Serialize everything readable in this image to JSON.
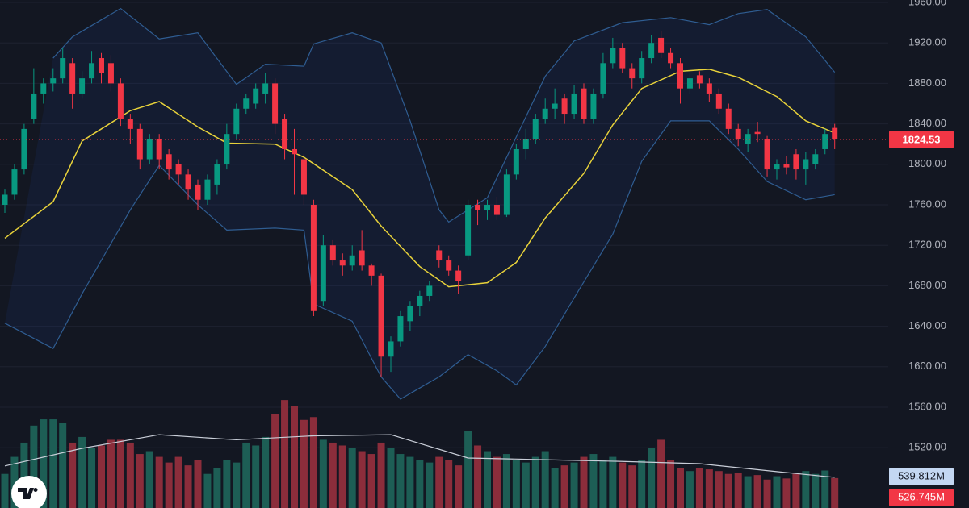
{
  "chart_data": {
    "type": "candlestick",
    "ylim": [
      1460.4,
      1962.4
    ],
    "yticks": [
      {
        "value": 1520,
        "label": "1520.00"
      },
      {
        "value": 1560,
        "label": "1560.00"
      },
      {
        "value": 1600,
        "label": "1600.00"
      },
      {
        "value": 1640,
        "label": "1640.00"
      },
      {
        "value": 1680,
        "label": "1680.00"
      },
      {
        "value": 1720,
        "label": "1720.00"
      },
      {
        "value": 1760,
        "label": "1760.00"
      },
      {
        "value": 1800,
        "label": "1800.00"
      },
      {
        "value": 1840,
        "label": "1840.00"
      },
      {
        "value": 1880,
        "label": "1880.00"
      },
      {
        "value": 1920,
        "label": "1920.00"
      },
      {
        "value": 1960,
        "label": "1960.00"
      }
    ],
    "grid": true,
    "up_color": "#089981",
    "down_color": "#f23645",
    "volume_up_color": "#1d5e55",
    "volume_down_color": "#8b2d3b",
    "candles": [
      [
        1760,
        1775,
        1752,
        1770
      ],
      [
        1770,
        1800,
        1765,
        1795
      ],
      [
        1795,
        1840,
        1790,
        1835
      ],
      [
        1845,
        1895,
        1840,
        1870
      ],
      [
        1870,
        1885,
        1860,
        1880
      ],
      [
        1880,
        1895,
        1872,
        1885
      ],
      [
        1885,
        1915,
        1880,
        1905
      ],
      [
        1900,
        1905,
        1855,
        1870
      ],
      [
        1870,
        1892,
        1865,
        1885
      ],
      [
        1885,
        1912,
        1880,
        1900
      ],
      [
        1905,
        1910,
        1880,
        1890
      ],
      [
        1900,
        1908,
        1872,
        1880
      ],
      [
        1880,
        1885,
        1838,
        1845
      ],
      [
        1845,
        1850,
        1820,
        1835
      ],
      [
        1835,
        1840,
        1795,
        1805
      ],
      [
        1805,
        1830,
        1800,
        1825
      ],
      [
        1825,
        1830,
        1795,
        1805
      ],
      [
        1810,
        1815,
        1785,
        1795
      ],
      [
        1800,
        1805,
        1780,
        1790
      ],
      [
        1790,
        1795,
        1765,
        1775
      ],
      [
        1780,
        1785,
        1755,
        1765
      ],
      [
        1765,
        1790,
        1760,
        1785
      ],
      [
        1780,
        1805,
        1770,
        1800
      ],
      [
        1800,
        1840,
        1795,
        1830
      ],
      [
        1830,
        1860,
        1825,
        1855
      ],
      [
        1855,
        1870,
        1850,
        1865
      ],
      [
        1860,
        1880,
        1855,
        1875
      ],
      [
        1870,
        1890,
        1860,
        1880
      ],
      [
        1880,
        1885,
        1830,
        1840
      ],
      [
        1845,
        1850,
        1805,
        1815
      ],
      [
        1815,
        1835,
        1770,
        1810
      ],
      [
        1805,
        1810,
        1760,
        1770
      ],
      [
        1760,
        1765,
        1650,
        1655
      ],
      [
        1665,
        1730,
        1660,
        1720
      ],
      [
        1720,
        1725,
        1700,
        1705
      ],
      [
        1705,
        1712,
        1690,
        1700
      ],
      [
        1700,
        1720,
        1695,
        1710
      ],
      [
        1715,
        1735,
        1695,
        1700
      ],
      [
        1700,
        1702,
        1680,
        1690
      ],
      [
        1690,
        1692,
        1590,
        1610
      ],
      [
        1610,
        1630,
        1595,
        1625
      ],
      [
        1625,
        1655,
        1620,
        1650
      ],
      [
        1645,
        1665,
        1635,
        1660
      ],
      [
        1660,
        1675,
        1650,
        1670
      ],
      [
        1670,
        1685,
        1665,
        1680
      ],
      [
        1715,
        1720,
        1698,
        1705
      ],
      [
        1705,
        1710,
        1690,
        1695
      ],
      [
        1695,
        1700,
        1672,
        1685
      ],
      [
        1710,
        1765,
        1705,
        1760
      ],
      [
        1760,
        1765,
        1740,
        1755
      ],
      [
        1755,
        1765,
        1745,
        1760
      ],
      [
        1760,
        1768,
        1745,
        1750
      ],
      [
        1750,
        1795,
        1748,
        1790
      ],
      [
        1790,
        1820,
        1785,
        1815
      ],
      [
        1815,
        1835,
        1805,
        1825
      ],
      [
        1825,
        1850,
        1820,
        1845
      ],
      [
        1845,
        1865,
        1840,
        1855
      ],
      [
        1855,
        1875,
        1845,
        1860
      ],
      [
        1865,
        1870,
        1840,
        1850
      ],
      [
        1850,
        1878,
        1845,
        1870
      ],
      [
        1875,
        1880,
        1840,
        1845
      ],
      [
        1845,
        1875,
        1840,
        1870
      ],
      [
        1870,
        1910,
        1865,
        1900
      ],
      [
        1900,
        1925,
        1895,
        1915
      ],
      [
        1915,
        1920,
        1890,
        1895
      ],
      [
        1895,
        1900,
        1875,
        1885
      ],
      [
        1885,
        1912,
        1880,
        1905
      ],
      [
        1905,
        1928,
        1900,
        1920
      ],
      [
        1925,
        1932,
        1905,
        1910
      ],
      [
        1910,
        1915,
        1895,
        1900
      ],
      [
        1900,
        1905,
        1860,
        1875
      ],
      [
        1875,
        1890,
        1870,
        1885
      ],
      [
        1888,
        1892,
        1875,
        1880
      ],
      [
        1880,
        1885,
        1862,
        1870
      ],
      [
        1870,
        1875,
        1850,
        1855
      ],
      [
        1855,
        1860,
        1830,
        1835
      ],
      [
        1835,
        1840,
        1818,
        1825
      ],
      [
        1820,
        1835,
        1812,
        1830
      ],
      [
        1832,
        1842,
        1822,
        1830
      ],
      [
        1825,
        1828,
        1788,
        1795
      ],
      [
        1795,
        1805,
        1785,
        1800
      ],
      [
        1800,
        1808,
        1790,
        1797
      ],
      [
        1810,
        1815,
        1785,
        1795
      ],
      [
        1795,
        1812,
        1780,
        1805
      ],
      [
        1800,
        1815,
        1795,
        1810
      ],
      [
        1815,
        1835,
        1810,
        1830
      ],
      [
        1836,
        1840,
        1815,
        1824.53
      ]
    ],
    "bands": [
      {
        "name": "upper",
        "color": "#2f5d92",
        "x": [
          5,
          7,
          12,
          16,
          20,
          24,
          27,
          31,
          32,
          36,
          39,
          42,
          45,
          46,
          50,
          53,
          56,
          59,
          64,
          69,
          73,
          76,
          79,
          83,
          86
        ],
        "values": [
          1905,
          1926,
          1954,
          1924,
          1930,
          1879,
          1899,
          1897,
          1919,
          1930,
          1920,
          1843,
          1755,
          1743,
          1767,
          1827,
          1887,
          1922,
          1940,
          1945,
          1938,
          1949,
          1953,
          1926,
          1891
        ]
      },
      {
        "name": "basis",
        "color": "#e8d23a",
        "x": [
          0,
          5,
          8,
          13,
          16,
          20,
          23,
          28,
          31,
          36,
          39,
          43,
          46,
          50,
          53,
          56,
          60,
          63,
          66,
          70,
          73,
          76,
          80,
          83,
          86
        ],
        "values": [
          1727,
          1763,
          1823,
          1853,
          1862,
          1837,
          1821,
          1820,
          1807,
          1775,
          1739,
          1699,
          1679,
          1683,
          1703,
          1747,
          1791,
          1839,
          1875,
          1892,
          1894,
          1886,
          1867,
          1843,
          1831
        ]
      },
      {
        "name": "lower",
        "color": "#2f5d92",
        "x": [
          0,
          5,
          8,
          13,
          16,
          20,
          23,
          28,
          31,
          32,
          36,
          39,
          41,
          45,
          48,
          51,
          53,
          56,
          59,
          63,
          66,
          69,
          73,
          76,
          79,
          83,
          86
        ],
        "values": [
          1643,
          1618,
          1672,
          1755,
          1799,
          1760,
          1735,
          1737,
          1735,
          1662,
          1645,
          1590,
          1568,
          1590,
          1612,
          1596,
          1582,
          1620,
          1668,
          1731,
          1803,
          1843,
          1843,
          1815,
          1783,
          1765,
          1770
        ]
      }
    ],
    "band_fill": "rgba(41,98,255,0.07)",
    "volume_ylim": [
      0,
      8940
    ],
    "volume": {
      "values": [
        600,
        900,
        1150,
        1450,
        1560,
        1560,
        1500,
        1150,
        1250,
        1050,
        1100,
        1200,
        1200,
        1150,
        950,
        1000,
        900,
        800,
        900,
        750,
        850,
        600,
        700,
        850,
        800,
        1150,
        1100,
        1250,
        1650,
        1900,
        1800,
        1550,
        1600,
        1200,
        1150,
        1100,
        1050,
        1000,
        950,
        1150,
        1050,
        950,
        900,
        850,
        800,
        900,
        850,
        750,
        1350,
        1100,
        1000,
        900,
        950,
        850,
        800,
        900,
        1000,
        700,
        750,
        800,
        900,
        950,
        850,
        900,
        800,
        750,
        850,
        1050,
        1200,
        850,
        700,
        650,
        700,
        680,
        650,
        600,
        620,
        560,
        580,
        500,
        560,
        520,
        600,
        650,
        600,
        660,
        526.745
      ],
      "last_label": "526.745M"
    },
    "volume_ma": {
      "color": "#c9ced8",
      "x": [
        0,
        8,
        16,
        24,
        32,
        40,
        48,
        56,
        64,
        72,
        80,
        86
      ],
      "values": [
        740,
        1050,
        1290,
        1200,
        1270,
        1290,
        880,
        850,
        820,
        780,
        640,
        539.812
      ],
      "last_label": "539.812M"
    }
  }
}
